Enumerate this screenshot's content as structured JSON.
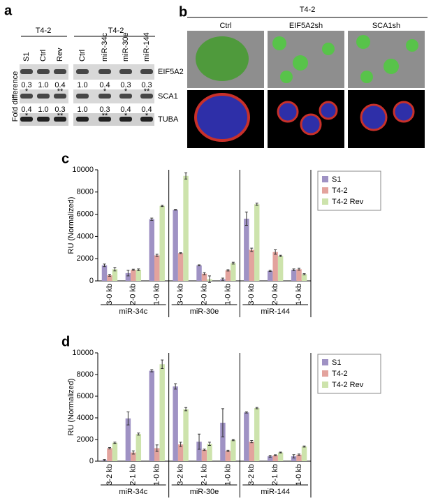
{
  "panel_a": {
    "label": "a",
    "group_titles": [
      "T4-2",
      "T4-2"
    ],
    "lanes": [
      "S1",
      "Ctrl",
      "Rev",
      "Ctrl",
      "miR-34c",
      "miR-30e",
      "miR-144"
    ],
    "y_label": "Fold difference",
    "rows": [
      {
        "name": "EIF5A2",
        "values": [
          "0.3",
          "1.0",
          "0.4",
          "1.0",
          "0.4",
          "0.3",
          "0.3"
        ],
        "stars": [
          "*",
          null,
          "**",
          null,
          "*",
          "*",
          "**"
        ]
      },
      {
        "name": "SCA1",
        "values": [
          "0.4",
          "1.0",
          "0.3",
          "1.0",
          "0.3",
          "0.4",
          "0.4"
        ],
        "stars": [
          "*",
          null,
          "**",
          null,
          "**",
          "*",
          "*"
        ]
      },
      {
        "name": "TUBA"
      }
    ]
  },
  "panel_b": {
    "label": "b",
    "title": "T4-2",
    "columns": [
      "Ctrl",
      "EIF5A2sh",
      "SCA1sh"
    ]
  },
  "chart_data": [
    {
      "type": "bar",
      "label": "c",
      "y_label": "RU (Normalized)",
      "ylim": [
        0,
        10000
      ],
      "yticks": [
        0,
        2000,
        4000,
        6000,
        8000,
        10000
      ],
      "categories": [
        "3-0 kb",
        "2-0 kb",
        "1-0 kb",
        "3-0 kb",
        "2-0 kb",
        "1-0 kb",
        "3-0 kb",
        "2-0 kb",
        "1-0 kb"
      ],
      "groups": [
        "miR-34c",
        "miR-30e",
        "miR-144"
      ],
      "legend": "upper right",
      "series": [
        {
          "name": "S1",
          "color": "#9f92c4",
          "values": [
            1400,
            700,
            5550,
            6400,
            1400,
            150,
            5600,
            900,
            1000
          ],
          "errors": [
            120,
            250,
            100,
            30,
            50,
            100,
            600,
            50,
            80
          ]
        },
        {
          "name": "T4-2",
          "color": "#e3a39d",
          "values": [
            500,
            1000,
            2300,
            2500,
            650,
            950,
            2800,
            2600,
            1050
          ],
          "errors": [
            80,
            50,
            100,
            40,
            100,
            60,
            150,
            200,
            80
          ]
        },
        {
          "name": "T4-2 Rev",
          "color": "#cde3ac",
          "values": [
            1050,
            1000,
            6750,
            9450,
            150,
            1600,
            6900,
            2250,
            600
          ],
          "errors": [
            150,
            80,
            60,
            280,
            300,
            80,
            100,
            60,
            50
          ]
        }
      ]
    },
    {
      "type": "bar",
      "label": "d",
      "y_label": "RU (Normalized)",
      "ylim": [
        0,
        10000
      ],
      "yticks": [
        0,
        2000,
        4000,
        6000,
        8000,
        10000
      ],
      "categories": [
        "3-2 kb",
        "2-1 kb",
        "1-0 kb",
        "3-2 kb",
        "2-1 kb",
        "1-0 kb",
        "3-2 kb",
        "2-1 kb",
        "1-0 kb"
      ],
      "groups": [
        "miR-34c",
        "miR-30e",
        "miR-144"
      ],
      "legend": "upper right",
      "series": [
        {
          "name": "S1",
          "color": "#9f92c4",
          "values": [
            100,
            3950,
            8350,
            6900,
            1800,
            3550,
            4500,
            450,
            450
          ],
          "errors": [
            50,
            600,
            100,
            250,
            700,
            1300,
            60,
            80,
            150
          ]
        },
        {
          "name": "T4-2",
          "color": "#e3a39d",
          "values": [
            1200,
            800,
            1200,
            1550,
            1050,
            950,
            1800,
            550,
            600
          ],
          "errors": [
            60,
            150,
            300,
            200,
            60,
            60,
            100,
            40,
            60
          ]
        },
        {
          "name": "T4-2 Rev",
          "color": "#cde3ac",
          "values": [
            1700,
            2500,
            8950,
            4800,
            1600,
            1950,
            4900,
            800,
            1350
          ],
          "errors": [
            60,
            100,
            400,
            150,
            150,
            60,
            60,
            40,
            50
          ]
        }
      ]
    }
  ]
}
